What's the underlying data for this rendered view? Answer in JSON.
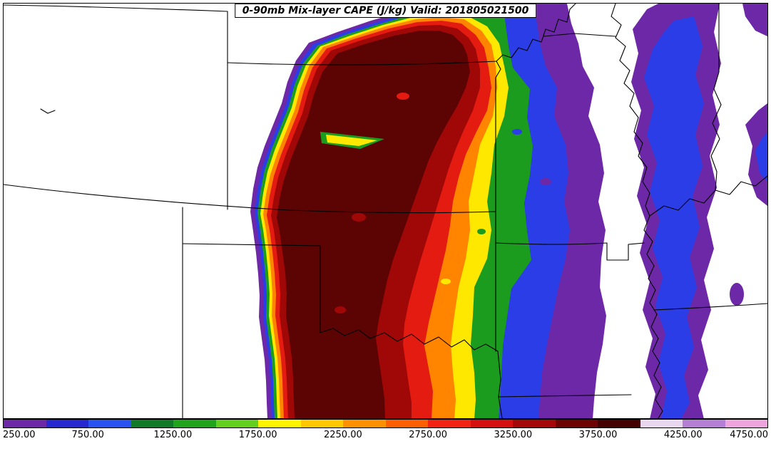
{
  "title": "0-90mb Mix-layer CAPE (J/kg) Valid: 201805021500",
  "chart_data": {
    "type": "heatmap",
    "subtype": "filled-contour-weather-map",
    "variable": "0-90mb Mix-layer CAPE",
    "units": "J/kg",
    "valid_time": "201805021500",
    "title": "0-90mb Mix-layer CAPE (J/kg) Valid: 201805021500",
    "region": "Central United States (Nebraska, Kansas, Oklahoma, Texas, Missouri, Arkansas, Mississippi Valley)",
    "contour_levels": [
      250,
      500,
      750,
      1000,
      1250,
      1500,
      1750,
      2000,
      2250,
      2500,
      2750,
      3000,
      3250,
      3500,
      3750,
      4000,
      4250,
      4500,
      4750
    ],
    "band_colors": [
      "#6d28a8",
      "#2828d0",
      "#2a52f0",
      "#107a28",
      "#1fa41c",
      "#64cf1e",
      "#fff400",
      "#ffc800",
      "#ff9000",
      "#ff5f00",
      "#f32313",
      "#d60f0f",
      "#a50808",
      "#6e0303",
      "#450101",
      "#e8d7ef",
      "#b57fd6",
      "#eea4dc"
    ],
    "colorbar_tick_labels": [
      "250.00",
      "750.00",
      "1250.00",
      "1750.00",
      "2250.00",
      "2750.00",
      "3250.00",
      "3750.00",
      "4250.00",
      "4750.00"
    ],
    "legend_position": "horizontal colorbar at bottom",
    "grid": false,
    "summary": "Large CAPE plume (maximum 3250+ J/kg, dark maroon) oriented SW-NE from the Texas Panhandle across western Oklahoma and central/western Kansas into Nebraska; very sharp western dryline gradient, gradual eastward decrease through orange/yellow/green/blue to 250-750 J/kg (purple/blue) bands over Missouri, Arkansas and along the Mississippi River valley."
  },
  "map_fills": {
    "purple": "#6d28a8",
    "blue": "#2a3de6",
    "green": "#1c9c1e",
    "yellow": "#ffe800",
    "orange": "#ff8400",
    "red": "#e31b10",
    "dark_red": "#a00707",
    "maroon": "#5c0303"
  },
  "frame_color": "#000000",
  "background_color": "#ffffff"
}
